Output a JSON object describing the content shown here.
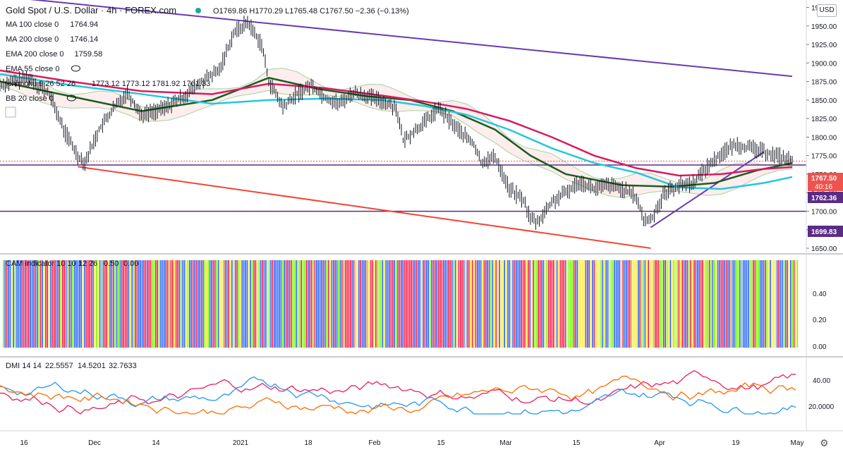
{
  "header": {
    "symbol_title": "Gold Spot / U.S. Dollar · 4h · FOREX.com",
    "ohlc": "O1769.86 H1770.29 L1765.48 C1767.50 −2.36 (−0.13%)"
  },
  "indicators": [
    {
      "name": "MA 100 close 0",
      "value": "1764.94",
      "color": "#1b5e20"
    },
    {
      "name": "MA 200 close 0",
      "value": "1746.14",
      "color": "#26c6da"
    },
    {
      "name": "EMA 200 close 0",
      "value": "1759.58",
      "color": "#d81b60"
    },
    {
      "name": "EMA 55 close 0",
      "value": "",
      "color": "#787b86"
    },
    {
      "name": "Ichimoku 9 26 52 26",
      "value": "1773.12 1773.12 1781.92 1761.33",
      "color": "#787b86"
    },
    {
      "name": "BB 20 close 0",
      "value": "",
      "color": "#787b86"
    }
  ],
  "currency": "USD",
  "price_labels": {
    "last": "1767.50",
    "countdown": "40:16",
    "level_mid": "1762.36",
    "level_low": "1699.83"
  },
  "cam": {
    "title": "CAM indicator 10 10 12 26",
    "v1": "0.50",
    "v2": "0.00",
    "ticks": [
      "0.40",
      "0.20",
      "0.00"
    ]
  },
  "dmi": {
    "title": "DMI 14 14",
    "v1": "22.5557",
    "v2": "14.5201",
    "v3": "32.7633",
    "ticks": [
      "40.00",
      "20.0000"
    ]
  },
  "chart_data": {
    "type": "line",
    "title": "Gold Spot / U.S. Dollar · 4h · FOREX.com",
    "y_ticks": [
      1975,
      1950,
      1925,
      1900,
      1875,
      1850,
      1825,
      1800,
      1775,
      1750,
      1725,
      1700,
      1675,
      1650
    ],
    "y_tick_labels": [
      "1975.00",
      "1950.00",
      "1925.00",
      "1900.00",
      "1875.00",
      "1850.00",
      "1825.00",
      "1800.00",
      "1775.00",
      "1750.00",
      "1725.00",
      "1700.00",
      "1675.00",
      "1650.00"
    ],
    "ylim": [
      1650,
      1985
    ],
    "x_ticks": [
      "16",
      "Dec",
      "14",
      "2021",
      "18",
      "Feb",
      "15",
      "Mar",
      "15",
      "Apr",
      "19",
      "May"
    ],
    "horizontal_levels": [
      1762.36,
      1699.83
    ],
    "series": [
      {
        "name": "Price (close)",
        "color": "#131722",
        "points": [
          [
            0,
            1870
          ],
          [
            4,
            1880
          ],
          [
            7,
            1858
          ],
          [
            9,
            1810
          ],
          [
            11,
            1775
          ],
          [
            12,
            1766
          ],
          [
            14,
            1810
          ],
          [
            16,
            1838
          ],
          [
            18,
            1860
          ],
          [
            20,
            1830
          ],
          [
            23,
            1838
          ],
          [
            26,
            1855
          ],
          [
            29,
            1878
          ],
          [
            31,
            1890
          ],
          [
            33,
            1940
          ],
          [
            35,
            1955
          ],
          [
            37,
            1925
          ],
          [
            38,
            1875
          ],
          [
            40,
            1840
          ],
          [
            42,
            1858
          ],
          [
            44,
            1870
          ],
          [
            46,
            1853
          ],
          [
            48,
            1845
          ],
          [
            50,
            1860
          ],
          [
            52,
            1855
          ],
          [
            54,
            1848
          ],
          [
            56,
            1840
          ],
          [
            57,
            1795
          ],
          [
            60,
            1820
          ],
          [
            62,
            1838
          ],
          [
            65,
            1808
          ],
          [
            67,
            1790
          ],
          [
            68,
            1766
          ],
          [
            70,
            1773
          ],
          [
            72,
            1730
          ],
          [
            74,
            1715
          ],
          [
            75,
            1690
          ],
          [
            76,
            1685
          ],
          [
            78,
            1712
          ],
          [
            80,
            1725
          ],
          [
            82,
            1740
          ],
          [
            84,
            1730
          ],
          [
            86,
            1735
          ],
          [
            88,
            1730
          ],
          [
            90,
            1718
          ],
          [
            91,
            1688
          ],
          [
            92,
            1688
          ],
          [
            94,
            1725
          ],
          [
            96,
            1735
          ],
          [
            98,
            1738
          ],
          [
            100,
            1760
          ],
          [
            102,
            1778
          ],
          [
            104,
            1790
          ],
          [
            106,
            1785
          ],
          [
            108,
            1780
          ],
          [
            110,
            1775
          ],
          [
            112,
            1767.5
          ]
        ]
      },
      {
        "name": "MA 100",
        "color": "#1b5e20",
        "points": [
          [
            0,
            1875
          ],
          [
            10,
            1855
          ],
          [
            20,
            1835
          ],
          [
            30,
            1850
          ],
          [
            38,
            1880
          ],
          [
            45,
            1865
          ],
          [
            52,
            1855
          ],
          [
            58,
            1850
          ],
          [
            64,
            1835
          ],
          [
            70,
            1810
          ],
          [
            75,
            1775
          ],
          [
            80,
            1750
          ],
          [
            88,
            1735
          ],
          [
            95,
            1733
          ],
          [
            101,
            1738
          ],
          [
            107,
            1755
          ],
          [
            112,
            1764.94
          ]
        ]
      },
      {
        "name": "MA 200",
        "color": "#26c6da",
        "points": [
          [
            0,
            1885
          ],
          [
            10,
            1870
          ],
          [
            20,
            1858
          ],
          [
            30,
            1845
          ],
          [
            38,
            1850
          ],
          [
            46,
            1852
          ],
          [
            54,
            1850
          ],
          [
            60,
            1842
          ],
          [
            66,
            1830
          ],
          [
            72,
            1810
          ],
          [
            78,
            1785
          ],
          [
            84,
            1765
          ],
          [
            90,
            1752
          ],
          [
            96,
            1732
          ],
          [
            102,
            1730
          ],
          [
            108,
            1738
          ],
          [
            112,
            1746.14
          ]
        ]
      },
      {
        "name": "EMA 200",
        "color": "#d81b60",
        "points": [
          [
            0,
            1890
          ],
          [
            10,
            1875
          ],
          [
            20,
            1862
          ],
          [
            30,
            1858
          ],
          [
            38,
            1872
          ],
          [
            46,
            1866
          ],
          [
            54,
            1856
          ],
          [
            60,
            1848
          ],
          [
            66,
            1838
          ],
          [
            72,
            1822
          ],
          [
            78,
            1800
          ],
          [
            84,
            1775
          ],
          [
            90,
            1758
          ],
          [
            96,
            1748
          ],
          [
            102,
            1750
          ],
          [
            108,
            1757
          ],
          [
            112,
            1759.58
          ]
        ]
      }
    ],
    "trendlines": [
      {
        "name": "upper channel",
        "color": "#673ab7",
        "points": [
          [
            0,
            1990
          ],
          [
            112,
            1882
          ]
        ]
      },
      {
        "name": "lower channel",
        "color": "#f44336",
        "points": [
          [
            11,
            1760
          ],
          [
            92,
            1650
          ]
        ]
      },
      {
        "name": "support trend",
        "color": "#673ab7",
        "points": [
          [
            92,
            1678
          ],
          [
            108,
            1780
          ]
        ]
      }
    ]
  }
}
